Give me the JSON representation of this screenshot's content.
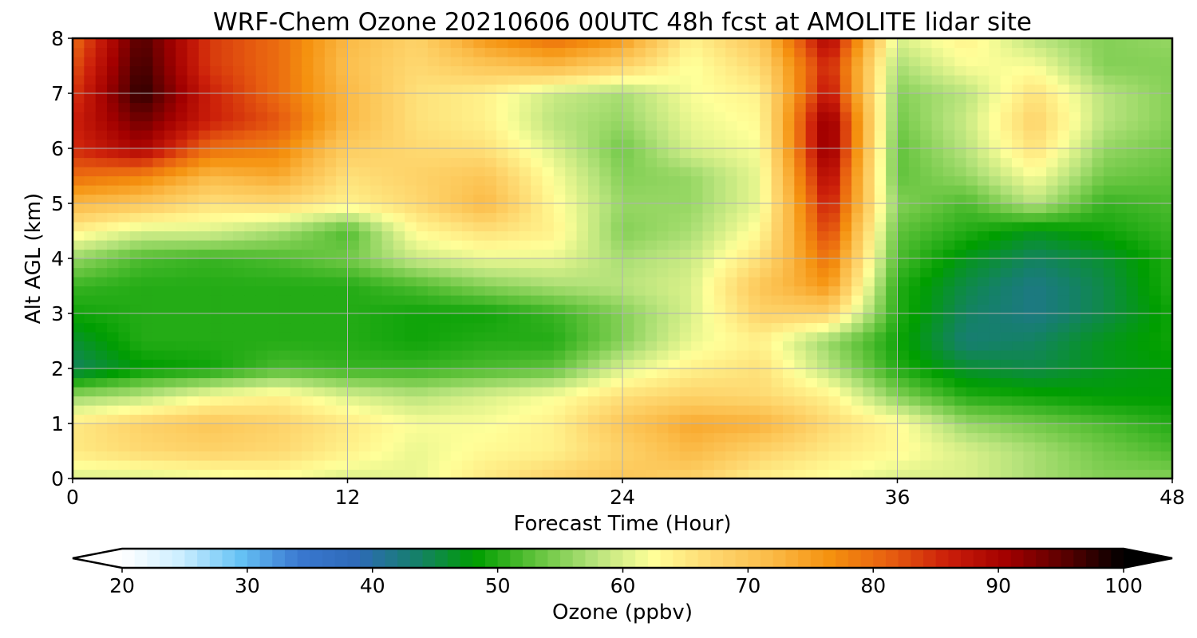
{
  "chart_data": {
    "type": "heatmap",
    "title": "WRF-Chem Ozone  20210606 00UTC 48h fcst at AMOLITE lidar site",
    "xlabel": "Forecast Time (Hour)",
    "ylabel": "Alt AGL (km)",
    "xlim": [
      0,
      48
    ],
    "ylim": [
      0,
      8
    ],
    "xticks": [
      "0",
      "12",
      "24",
      "36",
      "48"
    ],
    "xtick_values": [
      0,
      12,
      24,
      36,
      48
    ],
    "yticks": [
      "0",
      "1",
      "2",
      "3",
      "4",
      "5",
      "6",
      "7",
      "8"
    ],
    "ytick_values": [
      0,
      1,
      2,
      3,
      4,
      5,
      6,
      7,
      8
    ],
    "grid": true,
    "x": [
      0,
      3,
      6,
      9,
      12,
      15,
      18,
      21,
      24,
      27,
      30,
      33,
      36,
      39,
      42,
      45,
      48
    ],
    "y": [
      0,
      0.5,
      1,
      1.5,
      2,
      2.5,
      3,
      3.5,
      4,
      4.5,
      5,
      5.5,
      6,
      6.5,
      7,
      7.5,
      8
    ],
    "z": [
      [
        60,
        60,
        61,
        62,
        60,
        61,
        65,
        68,
        70,
        68,
        64,
        62,
        60,
        60,
        57,
        55,
        55
      ],
      [
        65,
        67,
        68,
        67,
        64,
        61,
        63,
        64,
        68,
        72,
        68,
        65,
        63,
        60,
        57,
        54,
        52
      ],
      [
        65,
        68,
        70,
        68,
        65,
        62,
        62,
        64,
        70,
        74,
        73,
        67,
        63,
        56,
        54,
        52,
        50
      ],
      [
        56,
        58,
        62,
        64,
        60,
        58,
        60,
        62,
        66,
        68,
        67,
        64,
        55,
        50,
        49,
        48,
        48
      ],
      [
        44,
        48,
        49,
        52,
        51,
        51,
        52,
        53,
        60,
        64,
        66,
        58,
        50,
        46,
        45,
        47,
        48
      ],
      [
        46,
        50,
        50,
        50,
        50,
        49,
        50,
        50,
        55,
        61,
        64,
        56,
        49,
        43,
        44,
        47,
        49
      ],
      [
        49,
        50,
        50,
        50,
        50,
        49,
        49,
        51,
        55,
        60,
        68,
        68,
        50,
        44,
        42,
        45,
        49
      ],
      [
        51,
        50,
        50,
        50,
        50,
        52,
        55,
        57,
        58,
        60,
        70,
        76,
        50,
        45,
        42,
        45,
        50
      ],
      [
        56,
        52,
        51,
        52,
        54,
        59,
        61,
        61,
        57,
        59,
        66,
        80,
        52,
        47,
        44,
        46,
        50
      ],
      [
        64,
        60,
        60,
        57,
        52,
        63,
        66,
        64,
        55,
        57,
        63,
        84,
        53,
        50,
        47,
        49,
        51
      ],
      [
        72,
        70,
        66,
        67,
        64,
        67,
        72,
        63,
        56,
        56,
        61,
        87,
        55,
        52,
        58,
        51,
        52
      ],
      [
        80,
        78,
        72,
        74,
        66,
        68,
        70,
        62,
        55,
        56,
        61,
        90,
        53,
        56,
        62,
        54,
        53
      ],
      [
        85,
        90,
        80,
        78,
        69,
        67,
        66,
        60,
        54,
        60,
        62,
        93,
        53,
        58,
        66,
        56,
        54
      ],
      [
        86,
        94,
        86,
        82,
        72,
        66,
        64,
        58,
        56,
        61,
        63,
        93,
        54,
        59,
        68,
        58,
        55
      ],
      [
        84,
        98,
        86,
        80,
        72,
        66,
        64,
        59,
        57,
        62,
        64,
        88,
        55,
        58,
        66,
        58,
        55
      ],
      [
        82,
        97,
        84,
        80,
        71,
        67,
        70,
        72,
        68,
        62,
        67,
        86,
        57,
        62,
        62,
        55,
        55
      ],
      [
        80,
        96,
        84,
        80,
        72,
        68,
        76,
        80,
        76,
        64,
        70,
        90,
        60,
        64,
        58,
        55,
        56
      ]
    ],
    "colorbar": {
      "label": "Ozone  (ppbv)",
      "min": 20,
      "max": 100,
      "ticks": [
        "20",
        "30",
        "40",
        "50",
        "60",
        "70",
        "80",
        "90",
        "100"
      ],
      "tick_values": [
        20,
        30,
        40,
        50,
        60,
        70,
        80,
        90,
        100
      ],
      "extend": "both",
      "colors": [
        "#ffffff",
        "#cceeff",
        "#66c2f5",
        "#3a78d0",
        "#2e6ab8",
        "#15806a",
        "#009e00",
        "#5fc23a",
        "#b4e27a",
        "#ffff99",
        "#fed870",
        "#fbbb48",
        "#f5920f",
        "#e86010",
        "#cc1f0a",
        "#a30000",
        "#5a0000",
        "#000000"
      ]
    }
  }
}
